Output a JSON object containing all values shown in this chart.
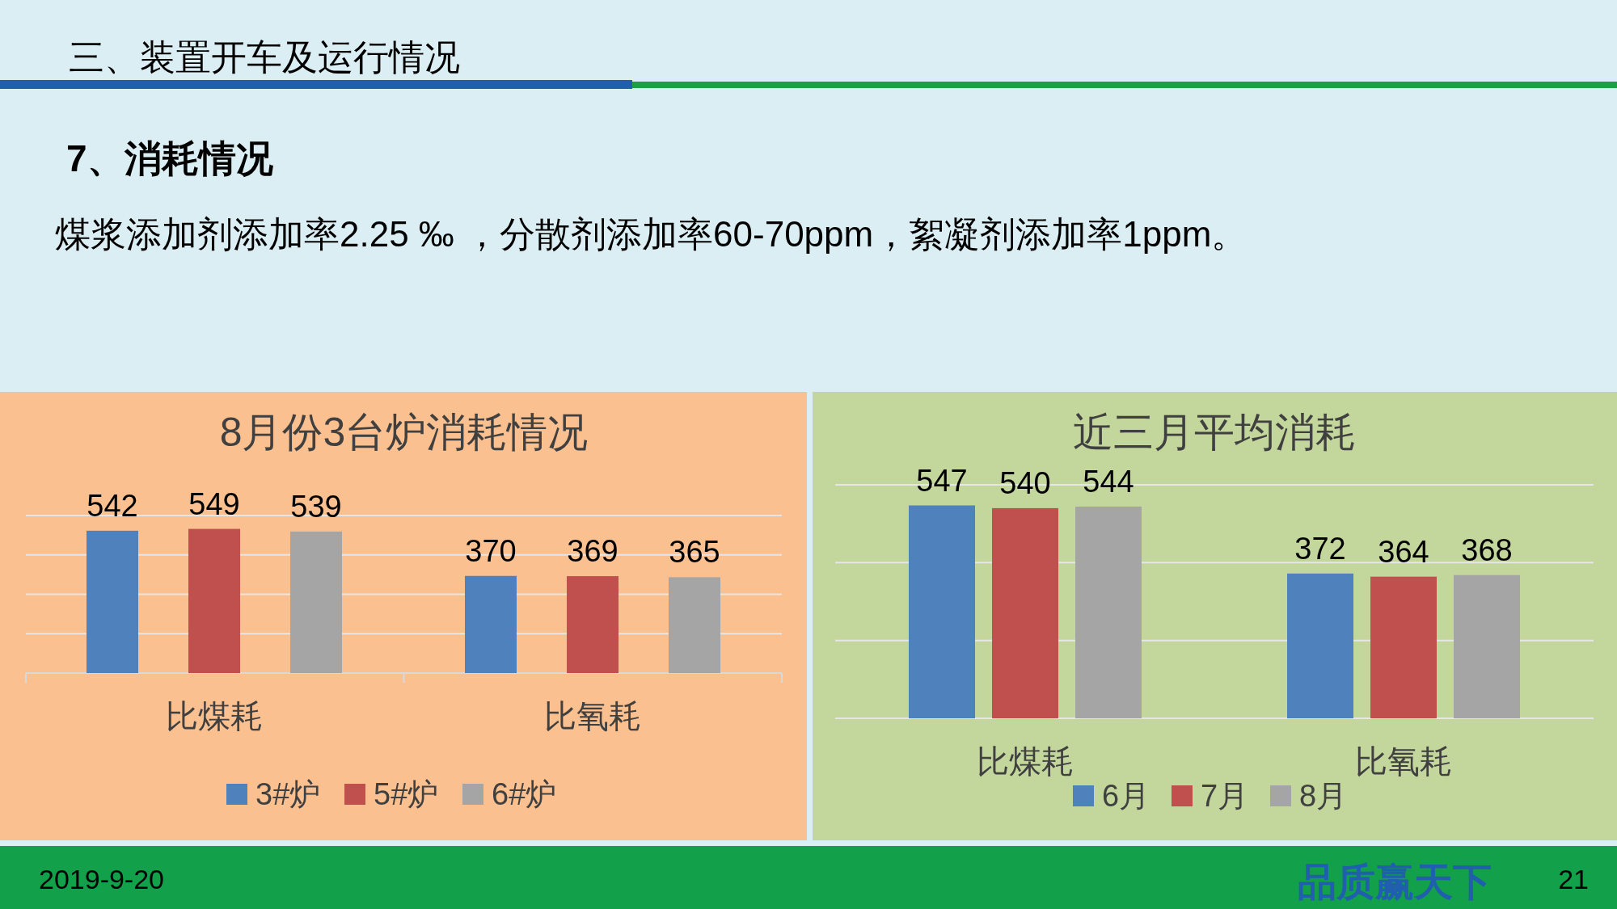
{
  "chart_data": [
    {
      "type": "bar",
      "title": "8月份3台炉消耗情况",
      "categories": [
        "比煤耗",
        "比氧耗"
      ],
      "series": [
        {
          "name": "3#炉",
          "color": "#4f81bd",
          "values": [
            542,
            370
          ]
        },
        {
          "name": "5#炉",
          "color": "#c0504d",
          "values": [
            549,
            369
          ]
        },
        {
          "name": "6#炉",
          "color": "#a5a5a5",
          "values": [
            539,
            365
          ]
        }
      ],
      "ylim": [
        0,
        600
      ],
      "yticks": [
        {
          "value": 0,
          "label": null
        },
        {
          "value": 150,
          "label": null
        },
        {
          "value": 300,
          "label": null
        },
        {
          "value": 450,
          "label": null
        },
        {
          "value": 600,
          "label": null
        }
      ],
      "grid": "y",
      "legend": "bottom",
      "data_labels": true,
      "tick_labels": "x",
      "annotations": [
        "三、装置开车及运行情况",
        "7、消耗情况",
        "煤浆添加剂添加率2.25 ‰ ，分散剂添加率60-70ppm，絮凝剂添加率1ppm。",
        "2019-9-20",
        "21",
        "品质赢天下"
      ]
    },
    {
      "type": "bar",
      "title": "近三月平均消耗",
      "categories": [
        "比煤耗",
        "比氧耗"
      ],
      "series": [
        {
          "name": "6月",
          "color": "#4f81bd",
          "values": [
            547,
            372
          ]
        },
        {
          "name": "7月",
          "color": "#c0504d",
          "values": [
            540,
            364
          ]
        },
        {
          "name": "8月",
          "color": "#a5a5a5",
          "values": [
            544,
            368
          ]
        }
      ],
      "ylim": [
        0,
        600
      ],
      "yticks": [
        {
          "value": 0,
          "label": null
        },
        {
          "value": 200,
          "label": null
        },
        {
          "value": 400,
          "label": null
        },
        {
          "value": 600,
          "label": null
        }
      ],
      "grid": "y",
      "legend": "bottom",
      "data_labels": true,
      "tick_labels": "x"
    }
  ]
}
